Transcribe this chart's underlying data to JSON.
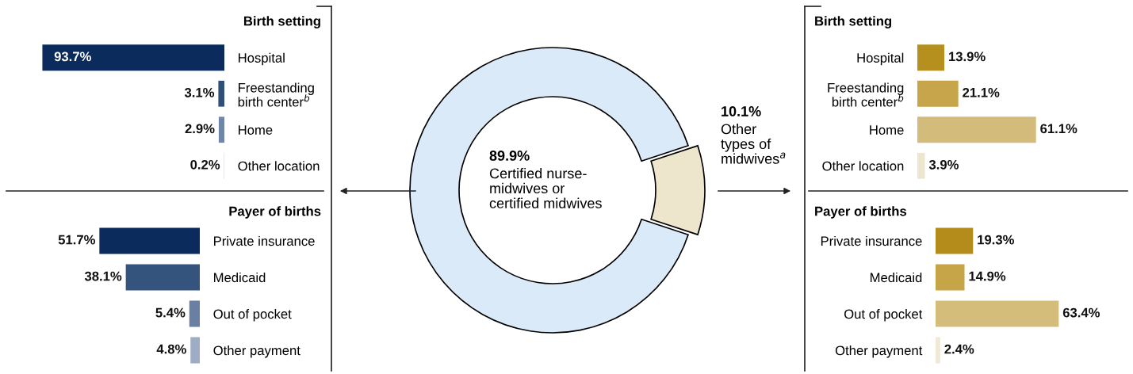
{
  "chart_data": [
    {
      "type": "bar",
      "orientation": "horizontal",
      "title": "Birth setting",
      "categories": [
        "Hospital",
        "Freestanding\nbirth center$^{b}$",
        "Home",
        "Other location"
      ],
      "values": [
        93.7,
        3.1,
        2.9,
        0.2
      ],
      "colors": [
        "#0b2b5c",
        "#2f4e78",
        "#6f86a8",
        "#c9d3e0"
      ],
      "value_labels": [
        "93.7%",
        "3.1%",
        "2.9%",
        "0.2%"
      ],
      "tick_labels": "y"
    },
    {
      "type": "bar",
      "orientation": "horizontal",
      "title": "Payer of births",
      "categories": [
        "Private insurance",
        "Medicaid",
        "Out of pocket",
        "Other payment"
      ],
      "values": [
        51.7,
        38.1,
        5.4,
        4.8
      ],
      "colors": [
        "#0b2b5c",
        "#34537d",
        "#6a80a3",
        "#9eadc4"
      ],
      "value_labels": [
        "51.7%",
        "38.1%",
        "5.4%",
        "4.8%"
      ],
      "tick_labels": "y"
    },
    {
      "type": "donut",
      "categories": [
        "Certified nurse-\nmidwives or\ncertified midwives",
        "Other\ntypes of\nmidwives$^{a}$"
      ],
      "values": [
        89.9,
        10.1
      ],
      "colors": [
        "#dbeaf9",
        "#ede5cc"
      ],
      "value_labels": [
        "89.9%",
        "10.1%"
      ]
    },
    {
      "type": "bar",
      "orientation": "horizontal",
      "title": "Birth setting",
      "categories": [
        "Hospital",
        "Freestanding\nbirth center$^{b}$",
        "Home",
        "Other location"
      ],
      "values": [
        13.9,
        21.1,
        61.1,
        3.9
      ],
      "colors": [
        "#b5901e",
        "#c7a54a",
        "#d3bc7b",
        "#ede6cf"
      ],
      "value_labels": [
        "13.9%",
        "21.1%",
        "61.1%",
        "3.9%"
      ],
      "tick_labels": "y"
    },
    {
      "type": "bar",
      "orientation": "horizontal",
      "title": "Payer of births",
      "categories": [
        "Private insurance",
        "Medicaid",
        "Out of pocket",
        "Other payment"
      ],
      "values": [
        19.3,
        14.9,
        63.4,
        2.4
      ],
      "colors": [
        "#b38c1c",
        "#c6a448",
        "#d4bc7a",
        "#efe9d6"
      ],
      "value_labels": [
        "19.3%",
        "14.9%",
        "63.4%",
        "2.4%"
      ],
      "tick_labels": "y"
    }
  ]
}
